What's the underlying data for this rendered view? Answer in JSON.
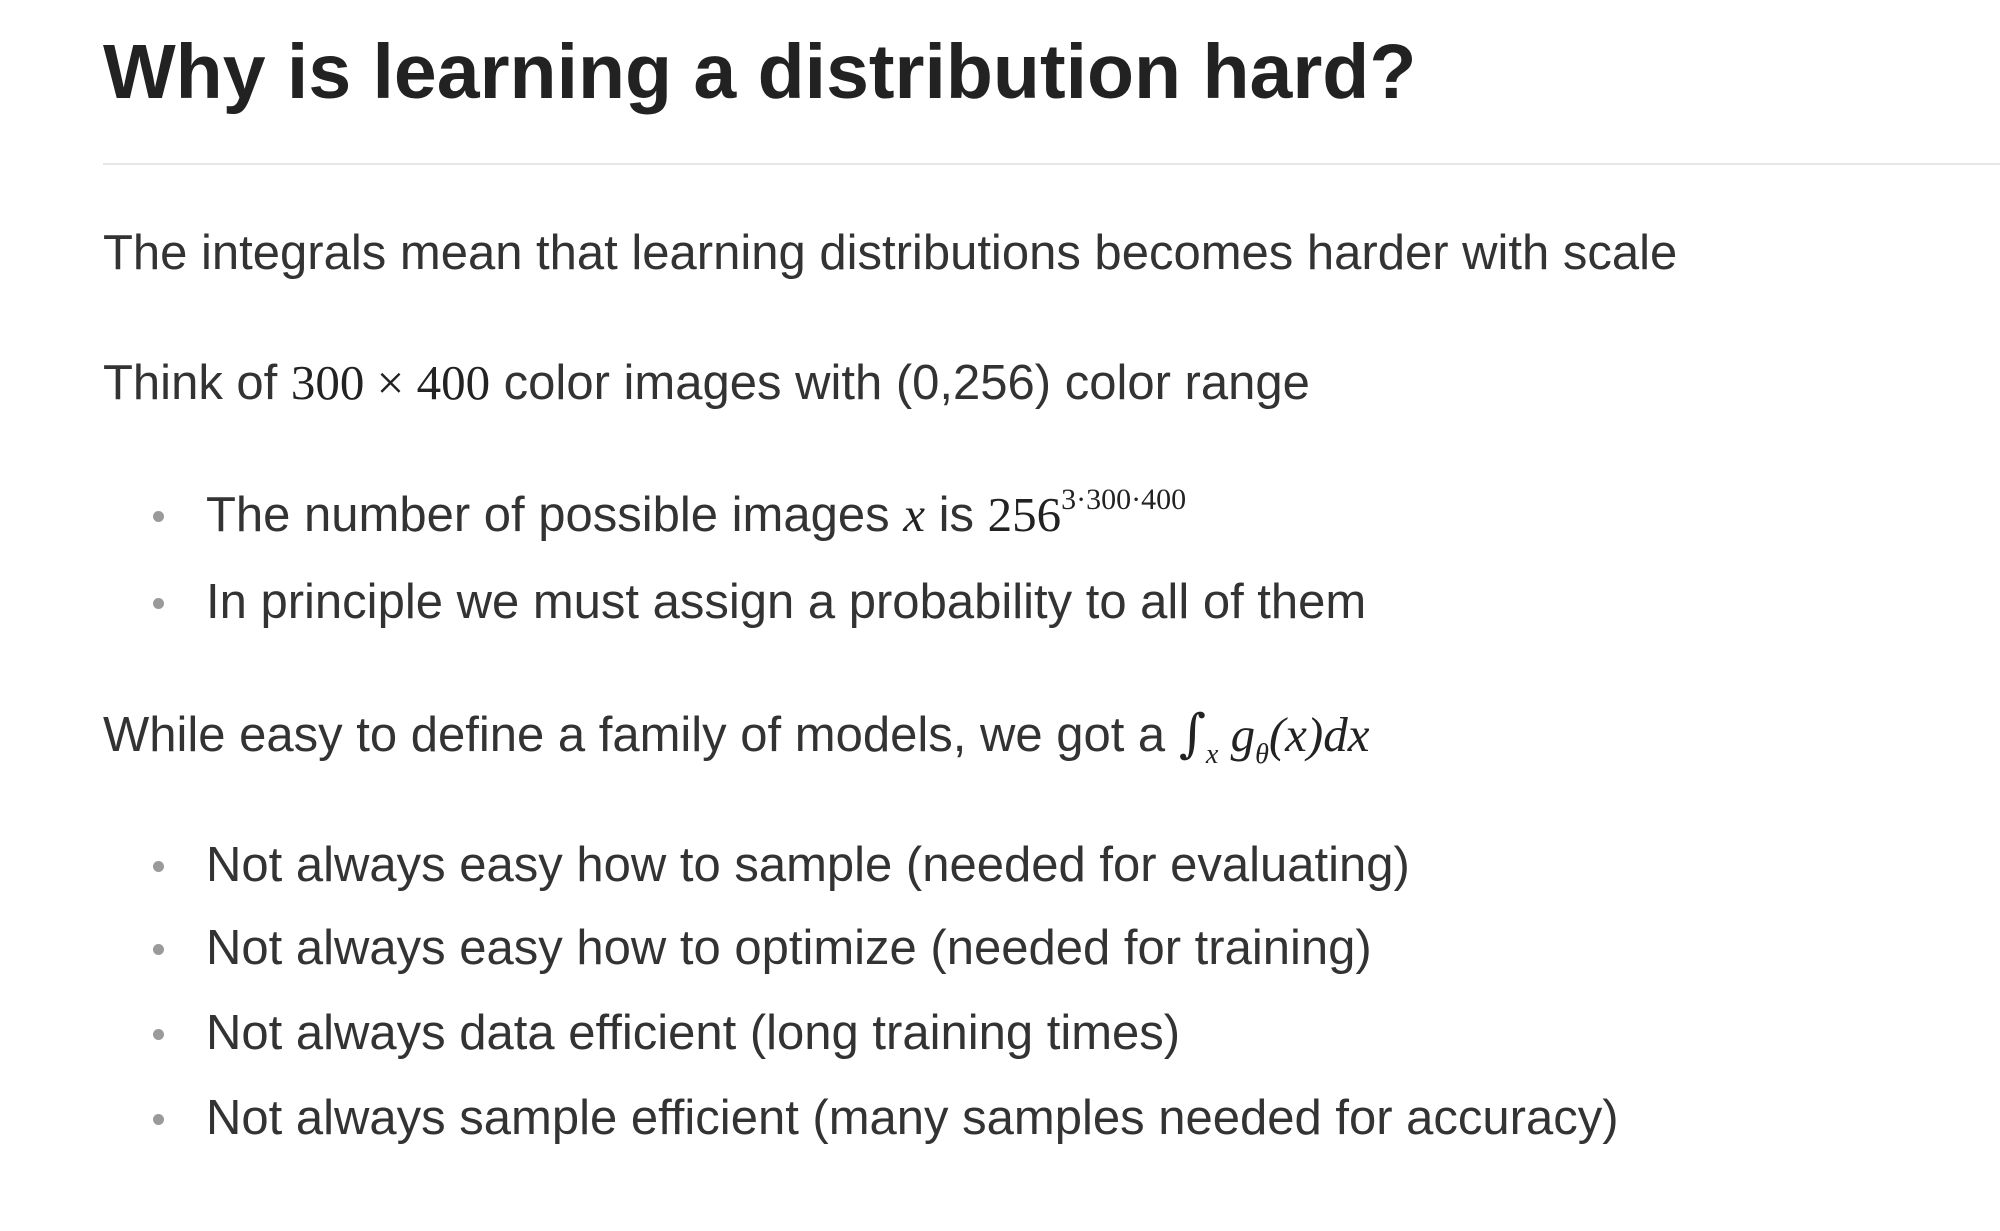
{
  "heading": "Why is learning a distribution hard?",
  "intro": "The integrals mean that learning distributions becomes harder with scale",
  "example": {
    "prefix": "Think of ",
    "math_a": "300",
    "times": " × ",
    "math_b": "400",
    "suffix": " color images with (0,256) color range"
  },
  "list1": [
    {
      "prefix": "The number of possible images ",
      "var": "x",
      "middle": " is ",
      "base": "256",
      "exponent": "3·300·400"
    },
    {
      "text": "In principle we must assign a probability to all of them"
    }
  ],
  "models": {
    "prefix": "While easy to define a family of models, we got a ",
    "integral": "∫",
    "integral_sub": "x",
    "func": "g",
    "func_sub": "θ",
    "args": "(x)dx"
  },
  "list2": [
    "Not always easy how to sample (needed for evaluating)",
    "Not always easy how to optimize (needed for training)",
    "Not always data efficient (long training times)",
    "Not always sample efficient (many samples needed for accuracy)"
  ]
}
